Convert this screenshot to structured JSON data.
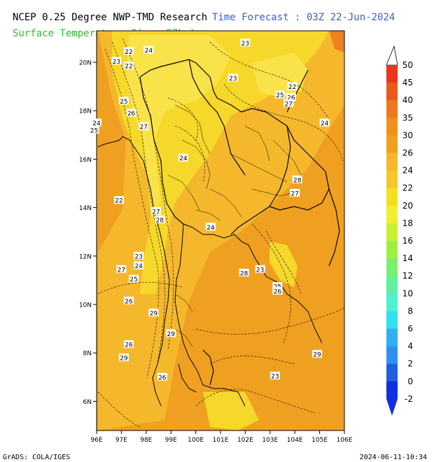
{
  "header": {
    "title_left": "NCEP 0.25 Degree NWP-TMD Research",
    "title_right": "Time Forecast : 03Z 22-Jun-2024",
    "subtitle": "Surface Temperature C(res.27km)"
  },
  "footer": {
    "left": "GrADS: COLA/IGES",
    "right": "2024-06-11-10:34"
  },
  "colors": {
    "orange": "#f0a020",
    "light_orange": "#f5b82d",
    "yellow": "#f5d82a",
    "pale_yellow": "#fae34a",
    "outline": "#000000"
  },
  "map": {
    "lon_labels": [
      "96E",
      "97E",
      "98E",
      "99E",
      "100E",
      "101E",
      "102E",
      "103E",
      "104E",
      "105E",
      "106E"
    ],
    "lat_labels": [
      "20N",
      "18N",
      "16N",
      "14N",
      "12N",
      "10N",
      "8N",
      "6N"
    ],
    "contour_labels": [
      {
        "text": "22",
        "lon": 97.3,
        "lat": 20.45
      },
      {
        "text": "23",
        "lon": 96.8,
        "lat": 20.05
      },
      {
        "text": "22",
        "lon": 97.3,
        "lat": 19.85
      },
      {
        "text": "24",
        "lon": 98.1,
        "lat": 20.5
      },
      {
        "text": "23",
        "lon": 102.0,
        "lat": 20.8
      },
      {
        "text": "23",
        "lon": 101.5,
        "lat": 19.35
      },
      {
        "text": "22",
        "lon": 103.9,
        "lat": 19.0
      },
      {
        "text": "25",
        "lon": 103.4,
        "lat": 18.65
      },
      {
        "text": "26",
        "lon": 103.85,
        "lat": 18.55
      },
      {
        "text": "27",
        "lon": 103.75,
        "lat": 18.3
      },
      {
        "text": "25",
        "lon": 97.1,
        "lat": 18.4
      },
      {
        "text": "26",
        "lon": 97.4,
        "lat": 17.9
      },
      {
        "text": "27",
        "lon": 97.9,
        "lat": 17.35
      },
      {
        "text": "24",
        "lon": 96.0,
        "lat": 17.5
      },
      {
        "text": "25",
        "lon": 95.9,
        "lat": 17.2
      },
      {
        "text": "24",
        "lon": 105.2,
        "lat": 17.5
      },
      {
        "text": "24",
        "lon": 99.5,
        "lat": 16.05
      },
      {
        "text": "28",
        "lon": 104.1,
        "lat": 15.15
      },
      {
        "text": "27",
        "lon": 104.0,
        "lat": 14.6
      },
      {
        "text": "22",
        "lon": 96.9,
        "lat": 14.3
      },
      {
        "text": "27",
        "lon": 98.4,
        "lat": 13.85
      },
      {
        "text": "28",
        "lon": 98.55,
        "lat": 13.5
      },
      {
        "text": "24",
        "lon": 100.6,
        "lat": 13.2
      },
      {
        "text": "23",
        "lon": 97.7,
        "lat": 12.0
      },
      {
        "text": "24",
        "lon": 97.7,
        "lat": 11.6
      },
      {
        "text": "27",
        "lon": 97.0,
        "lat": 11.45
      },
      {
        "text": "23",
        "lon": 102.6,
        "lat": 11.45
      },
      {
        "text": "28",
        "lon": 101.95,
        "lat": 11.3
      },
      {
        "text": "25",
        "lon": 97.5,
        "lat": 11.05
      },
      {
        "text": "25",
        "lon": 103.3,
        "lat": 10.75
      },
      {
        "text": "26",
        "lon": 103.3,
        "lat": 10.55
      },
      {
        "text": "26",
        "lon": 97.3,
        "lat": 10.15
      },
      {
        "text": "29",
        "lon": 98.3,
        "lat": 9.65
      },
      {
        "text": "29",
        "lon": 99.0,
        "lat": 8.8
      },
      {
        "text": "26",
        "lon": 97.3,
        "lat": 8.35
      },
      {
        "text": "29",
        "lon": 104.9,
        "lat": 7.95
      },
      {
        "text": "29",
        "lon": 97.1,
        "lat": 7.8
      },
      {
        "text": "26",
        "lon": 98.65,
        "lat": 7.0
      },
      {
        "text": "23",
        "lon": 103.2,
        "lat": 7.05
      }
    ]
  },
  "colorbar": {
    "labels": [
      "50",
      "45",
      "40",
      "35",
      "30",
      "26",
      "24",
      "22",
      "20",
      "18",
      "16",
      "14",
      "12",
      "10",
      "8",
      "6",
      "4",
      "2",
      "0",
      "-2"
    ],
    "colors": [
      "#e8361a",
      "#e85a1c",
      "#ee7820",
      "#f2901e",
      "#f0a020",
      "#f5b82d",
      "#f5c82a",
      "#f5e020",
      "#eef030",
      "#c8f030",
      "#9ef040",
      "#7af070",
      "#60f0a0",
      "#50f0d0",
      "#30e0f0",
      "#30b0f0",
      "#3090f0",
      "#2060e0",
      "#1030e0"
    ]
  }
}
